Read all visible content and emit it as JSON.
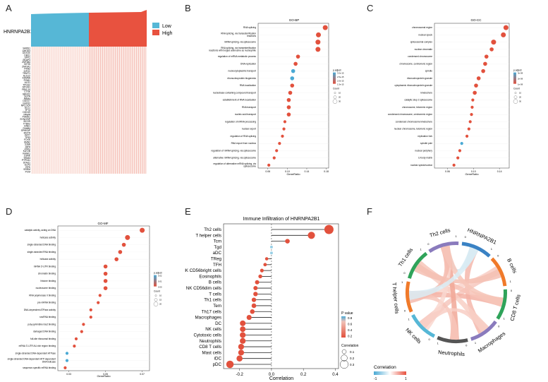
{
  "panel_letters": [
    "A",
    "B",
    "C",
    "D",
    "E",
    "F"
  ],
  "colors": {
    "low": "#56b7d6",
    "high": "#e8523f",
    "dot_red": "#e2513d",
    "dot_blue": "#4aa9d4",
    "neg": "#9ad0e6"
  },
  "chart_data": [
    {
      "id": "A",
      "type": "heatmap",
      "gene": "HNRNPA2B1",
      "legend": [
        "Low",
        "High"
      ],
      "row_labels": [
        "SARS1",
        "LMOD3",
        "DDX3X",
        "DBX1",
        "UFP1",
        "SKAP3",
        "ZNF384",
        "KIF25",
        "ZNF341",
        "PKN2",
        "KIF2C",
        "TRMT1",
        "ALG12",
        "KDM5A",
        "POM1",
        "ALG1",
        "TPGS2",
        "MTUS1",
        "FBXL14",
        "CTSK",
        "SBNO2",
        "SGTA",
        "RBM4",
        "DDX27",
        "NUP62",
        "NPLOC4",
        "SLC1",
        "TP73",
        "DDX49",
        "PAWR",
        "PSMD1",
        "SYNCRIP",
        "BCOR",
        "TTBK2",
        "GNE1",
        "FAM84",
        "SPHKAP",
        "MSTR",
        "KAT7",
        "TP53",
        "FOXK",
        "SMN2",
        "KIAA",
        "TAF6",
        "ZHX1",
        "KAT2B",
        "KANK1",
        "CSNK",
        "TRIM3",
        "PTPN11",
        "STAU1",
        "ELP3",
        "RPS",
        "SRRM",
        "PCM"
      ]
    },
    {
      "id": "B",
      "type": "scatter",
      "title": "GO-BP",
      "xlabel": "GeneRatio",
      "xticks": [
        "0.06",
        "0.10",
        "0.14",
        "0.18"
      ],
      "xlim": [
        0.04,
        0.185
      ],
      "terms": [
        {
          "label": "RNA splicing",
          "x": 0.178,
          "size": 3,
          "color": "red"
        },
        {
          "label": "RNA splicing, via transesterification reactions",
          "x": 0.164,
          "size": 3,
          "color": "red"
        },
        {
          "label": "mRNA splicing, via spliceosome",
          "x": 0.163,
          "size": 3,
          "color": "red"
        },
        {
          "label": "RNA splicing, via transesterification reactions with bulged adenosine as nucleophile",
          "x": 0.163,
          "size": 3,
          "color": "red"
        },
        {
          "label": "regulation of mRNA metabolic process",
          "x": 0.122,
          "size": 2,
          "color": "red"
        },
        {
          "label": "DNA replication",
          "x": 0.117,
          "size": 2,
          "color": "red"
        },
        {
          "label": "nucleocytoplasmic transport",
          "x": 0.112,
          "size": 2,
          "color": "blue"
        },
        {
          "label": "ribonucleoprotein biogenesis",
          "x": 0.11,
          "size": 2,
          "color": "blue"
        },
        {
          "label": "RNA localization",
          "x": 0.11,
          "size": 2,
          "color": "red"
        },
        {
          "label": "nucleobase-containing compound transport",
          "x": 0.106,
          "size": 2,
          "color": "red"
        },
        {
          "label": "establishment of RNA localization",
          "x": 0.103,
          "size": 2,
          "color": "red"
        },
        {
          "label": "RNA transport",
          "x": 0.103,
          "size": 2,
          "color": "red"
        },
        {
          "label": "nucleic acid transport",
          "x": 0.103,
          "size": 2,
          "color": "red"
        },
        {
          "label": "regulation of mRNA processing",
          "x": 0.095,
          "size": 1,
          "color": "red"
        },
        {
          "label": "nuclear export",
          "x": 0.093,
          "size": 1,
          "color": "red"
        },
        {
          "label": "regulation of RNA splicing",
          "x": 0.09,
          "size": 1,
          "color": "red"
        },
        {
          "label": "RNA export from nucleus",
          "x": 0.084,
          "size": 1,
          "color": "red"
        },
        {
          "label": "regulation of mRNA splicing, via spliceosome",
          "x": 0.078,
          "size": 1,
          "color": "red"
        },
        {
          "label": "alternative mRNA splicing, via spliceosome",
          "x": 0.073,
          "size": 1,
          "color": "red"
        },
        {
          "label": "regulation of alternative mRNA splicing, via spliceosome",
          "x": 0.062,
          "size": 1,
          "color": "red"
        }
      ],
      "legend_title": "p.adjust",
      "legend_values": [
        "3.0e-15",
        "2.5e-15",
        "2.0e-15",
        "1.5e-15"
      ],
      "count_title": "Count",
      "count_values": [
        "10",
        "20",
        "30"
      ]
    },
    {
      "id": "C",
      "type": "scatter",
      "title": "GO-CC",
      "xlabel": "GeneRatio",
      "xticks": [
        "0.06",
        "0.10",
        "0.14"
      ],
      "xlim": [
        0.04,
        0.155
      ],
      "terms": [
        {
          "label": "chromosomal region",
          "x": 0.15,
          "size": 3,
          "color": "red"
        },
        {
          "label": "nuclear speck",
          "x": 0.146,
          "size": 3,
          "color": "red"
        },
        {
          "label": "spliceosomal complex",
          "x": 0.131,
          "size": 3,
          "color": "red"
        },
        {
          "label": "nuclear chromatin",
          "x": 0.128,
          "size": 2,
          "color": "red"
        },
        {
          "label": "condensed chromosome",
          "x": 0.12,
          "size": 2,
          "color": "red"
        },
        {
          "label": "chromosome, centromeric region",
          "x": 0.118,
          "size": 2,
          "color": "red"
        },
        {
          "label": "spindle",
          "x": 0.115,
          "size": 2,
          "color": "red"
        },
        {
          "label": "ribonucleoprotein granule",
          "x": 0.108,
          "size": 2,
          "color": "red"
        },
        {
          "label": "cytoplasmic ribonucleoprotein granule",
          "x": 0.104,
          "size": 2,
          "color": "red"
        },
        {
          "label": "kinetochore",
          "x": 0.102,
          "size": 2,
          "color": "red"
        },
        {
          "label": "catalytic step 2 spliceosome",
          "x": 0.099,
          "size": 1,
          "color": "red"
        },
        {
          "label": "chromosome, telomeric region",
          "x": 0.098,
          "size": 1,
          "color": "red"
        },
        {
          "label": "condensed chromosome, centromeric region",
          "x": 0.097,
          "size": 1,
          "color": "red"
        },
        {
          "label": "condensed chromosome kinetochore",
          "x": 0.095,
          "size": 1,
          "color": "red"
        },
        {
          "label": "nuclear chromosome, telomeric region",
          "x": 0.093,
          "size": 1,
          "color": "red"
        },
        {
          "label": "replication fork",
          "x": 0.09,
          "size": 1,
          "color": "red"
        },
        {
          "label": "spindle pole",
          "x": 0.082,
          "size": 1,
          "color": "blue"
        },
        {
          "label": "nuclear periphery",
          "x": 0.079,
          "size": 1,
          "color": "red"
        },
        {
          "label": "U-body matrix",
          "x": 0.076,
          "size": 1,
          "color": "red"
        },
        {
          "label": "nuclear speck/nuclear",
          "x": 0.07,
          "size": 1,
          "color": "red"
        }
      ],
      "legend_title": "p.adjust",
      "legend_values": [
        "3e-08",
        "2e-08",
        "1e-08"
      ],
      "count_title": "Count",
      "count_values": [
        "10",
        "20",
        "30"
      ]
    },
    {
      "id": "D",
      "type": "scatter",
      "title": "GO-MF",
      "xlabel": "GeneRatio",
      "xticks": [
        "0.03",
        "0.05",
        "0.07"
      ],
      "xlim": [
        0.024,
        0.074
      ],
      "terms": [
        {
          "label": "catalytic activity, acting on DNA",
          "x": 0.07,
          "size": 3,
          "color": "red"
        },
        {
          "label": "helicase activity",
          "x": 0.062,
          "size": 3,
          "color": "red"
        },
        {
          "label": "single-stranded DNA binding",
          "x": 0.06,
          "size": 2,
          "color": "red"
        },
        {
          "label": "single-stranded RNA binding",
          "x": 0.058,
          "size": 2,
          "color": "red"
        },
        {
          "label": "helicase activity",
          "x": 0.056,
          "size": 2,
          "color": "red"
        },
        {
          "label": "mRNA 3'-UTR binding",
          "x": 0.05,
          "size": 2,
          "color": "red"
        },
        {
          "label": "chromatin binding",
          "x": 0.05,
          "size": 2,
          "color": "red"
        },
        {
          "label": "histone binding",
          "x": 0.05,
          "size": 2,
          "color": "red"
        },
        {
          "label": "nucleosome binding",
          "x": 0.05,
          "size": 2,
          "color": "red"
        },
        {
          "label": "RNA polymerase II binding",
          "x": 0.047,
          "size": 1,
          "color": "red"
        },
        {
          "label": "pre-mRNA binding",
          "x": 0.046,
          "size": 1,
          "color": "red"
        },
        {
          "label": "DNA-dependent ATPase activity",
          "x": 0.042,
          "size": 1,
          "color": "red"
        },
        {
          "label": "snoRNA binding",
          "x": 0.042,
          "size": 1,
          "color": "red"
        },
        {
          "label": "poly-pyrimidine tract binding",
          "x": 0.038,
          "size": 1,
          "color": "red"
        },
        {
          "label": "damaged DNA binding",
          "x": 0.037,
          "size": 1,
          "color": "red"
        },
        {
          "label": "full-site ribosomal binding",
          "x": 0.034,
          "size": 1,
          "color": "red"
        },
        {
          "label": "mRNA 3'-UTR AU-rich region binding",
          "x": 0.033,
          "size": 1,
          "color": "red"
        },
        {
          "label": "single-stranded DNA-dependent ATPase",
          "x": 0.029,
          "size": 1,
          "color": "blue"
        },
        {
          "label": "single-stranded DNA-dependent ATP-dependent DNA helicase",
          "x": 0.029,
          "size": 1,
          "color": "blue"
        },
        {
          "label": "sequence-specific mRNA binding",
          "x": 0.028,
          "size": 1,
          "color": "red"
        }
      ],
      "legend_title": "p.adjust",
      "legend_values": [
        "0.02",
        "0.01",
        "0.00"
      ],
      "count_title": "Count",
      "count_values": [
        "10",
        "15",
        "20"
      ]
    },
    {
      "id": "E",
      "type": "scatter",
      "title": "Immune Infiltration of HNRNPA2B1",
      "xlabel": "Correlation",
      "xticks": [
        "-0.2",
        "0.0",
        "0.2",
        "0.4"
      ],
      "xlim": [
        -0.3,
        0.42
      ],
      "cells": [
        {
          "label": "Th2 cells",
          "x": 0.36,
          "size": 0.35,
          "color": "red"
        },
        {
          "label": "T helper cells",
          "x": 0.25,
          "size": 0.25,
          "color": "red"
        },
        {
          "label": "Tcm",
          "x": 0.1,
          "size": 0.12,
          "color": "red"
        },
        {
          "label": "Tgd",
          "x": 0.0,
          "size": 0.03,
          "color": "blue"
        },
        {
          "label": "aDC",
          "x": 0.0,
          "size": 0.03,
          "color": "blue"
        },
        {
          "label": "TReg",
          "x": -0.03,
          "size": 0.05,
          "color": "red"
        },
        {
          "label": "TFH",
          "x": -0.04,
          "size": 0.06,
          "color": "red"
        },
        {
          "label": "NK CD56bright cells",
          "x": -0.06,
          "size": 0.07,
          "color": "red"
        },
        {
          "label": "Eosinophils",
          "x": -0.07,
          "size": 0.08,
          "color": "red"
        },
        {
          "label": "B cells",
          "x": -0.09,
          "size": 0.1,
          "color": "red"
        },
        {
          "label": "NK CD56dim cells",
          "x": -0.1,
          "size": 0.1,
          "color": "red"
        },
        {
          "label": "T cells",
          "x": -0.1,
          "size": 0.11,
          "color": "red"
        },
        {
          "label": "Th1 cells",
          "x": -0.11,
          "size": 0.11,
          "color": "red"
        },
        {
          "label": "Tem",
          "x": -0.11,
          "size": 0.12,
          "color": "red"
        },
        {
          "label": "Th17 cells",
          "x": -0.12,
          "size": 0.12,
          "color": "red"
        },
        {
          "label": "Macrophages",
          "x": -0.14,
          "size": 0.14,
          "color": "red"
        },
        {
          "label": "DC",
          "x": -0.18,
          "size": 0.17,
          "color": "red"
        },
        {
          "label": "NK cells",
          "x": -0.18,
          "size": 0.17,
          "color": "red"
        },
        {
          "label": "Cytotoxic cells",
          "x": -0.18,
          "size": 0.18,
          "color": "red"
        },
        {
          "label": "Neutrophils",
          "x": -0.18,
          "size": 0.18,
          "color": "red"
        },
        {
          "label": "CD8 T cells",
          "x": -0.19,
          "size": 0.18,
          "color": "red"
        },
        {
          "label": "Mast cells",
          "x": -0.19,
          "size": 0.18,
          "color": "red"
        },
        {
          "label": "iDC",
          "x": -0.2,
          "size": 0.19,
          "color": "red"
        },
        {
          "label": "pDC",
          "x": -0.26,
          "size": 0.26,
          "color": "red"
        }
      ],
      "pvalue_title": "P value",
      "pvalue_values": [
        "0.8",
        "0.6",
        "0.4",
        "0.2"
      ],
      "corr_title": "Correlation",
      "corr_values": [
        "0.1",
        "0.2",
        "0.3"
      ]
    },
    {
      "id": "F",
      "type": "chord",
      "sectors": [
        {
          "label": "HNRNPA2B1",
          "color": "#3a82c4"
        },
        {
          "label": "B cells",
          "color": "#f07a2a"
        },
        {
          "label": "CD8 T cells",
          "color": "#2fa35a"
        },
        {
          "label": "Macrophages",
          "color": "#8a7bbd"
        },
        {
          "label": "Neutrophils",
          "color": "#555555"
        },
        {
          "label": "NK cells",
          "color": "#56b7d6"
        },
        {
          "label": "T helper cells",
          "color": "#f07a2a"
        },
        {
          "label": "Th1 cells",
          "color": "#2fa35a"
        },
        {
          "label": "Th2 cells",
          "color": "#8a7bbd"
        }
      ],
      "legend_title": "Correlation",
      "legend_min": "-1",
      "legend_max": "1",
      "tick_labels": [
        "0",
        "1",
        "0",
        "1",
        "0",
        "1",
        "0",
        "1",
        "0",
        "1",
        "0",
        "1",
        "0",
        "1",
        "0",
        "1",
        "0",
        "1"
      ]
    }
  ]
}
